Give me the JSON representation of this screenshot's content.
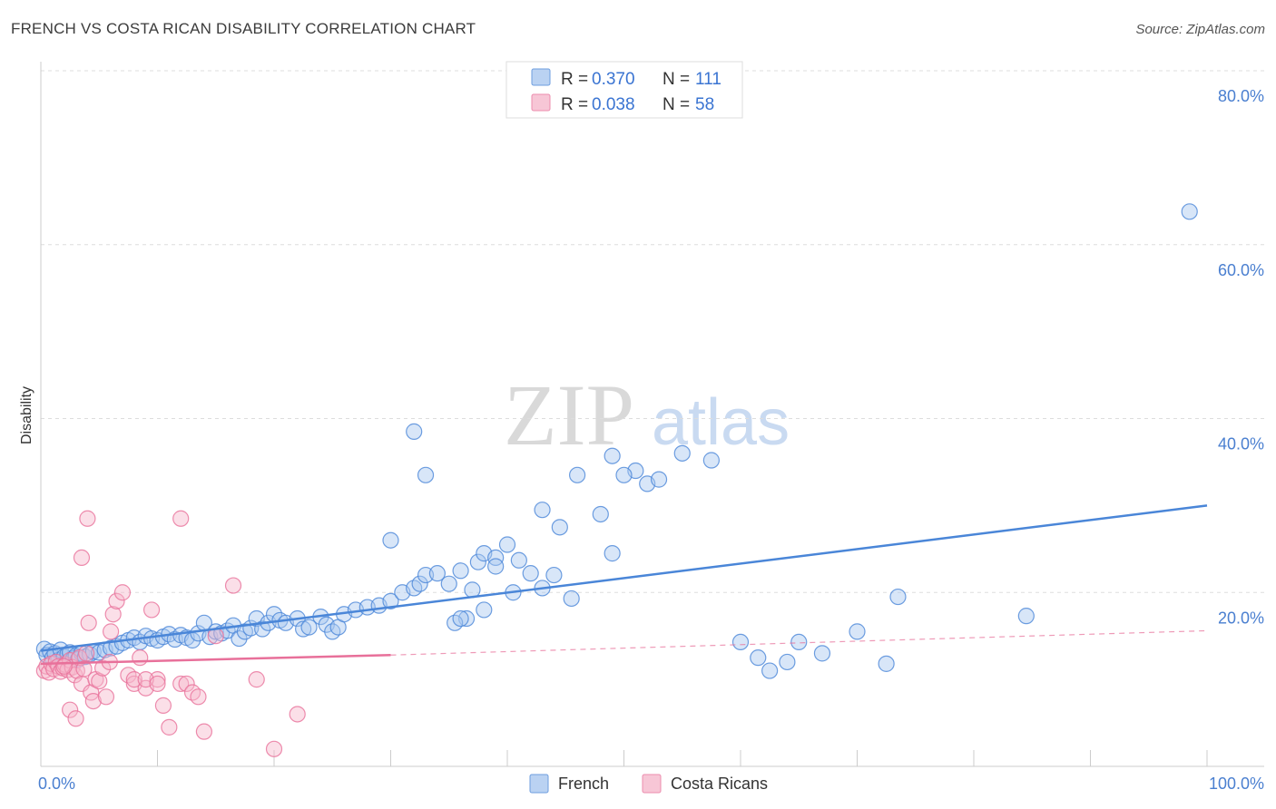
{
  "header": {
    "title": "FRENCH VS COSTA RICAN DISABILITY CORRELATION CHART",
    "source": "Source: ZipAtlas.com"
  },
  "watermark": {
    "zip": "ZIP",
    "atlas": "atlas"
  },
  "legend": {
    "rows": [
      {
        "r_label": "R = ",
        "r_value": "0.370",
        "n_label": "N = ",
        "n_value": "111"
      },
      {
        "r_label": "R = ",
        "r_value": "0.038",
        "n_label": "N = ",
        "n_value": "58"
      }
    ]
  },
  "bottom_legend": [
    "French",
    "Costa Ricans"
  ],
  "colors": {
    "french": "#4a86d8",
    "french_fill": "#a9c8f0",
    "costa": "#e8709a",
    "costa_fill": "#f6b8cc",
    "grid": "#dddddd",
    "tick_text": "#4a7fd0"
  },
  "chart_data": {
    "type": "scatter",
    "title": "FRENCH VS COSTA RICAN DISABILITY CORRELATION CHART",
    "xlabel": "",
    "ylabel": "Disability",
    "xlim": [
      0,
      100
    ],
    "ylim": [
      0,
      80
    ],
    "x_tick_labels": [
      "0.0%",
      "100.0%"
    ],
    "y_ticks": [
      20,
      40,
      60,
      80
    ],
    "y_tick_labels": [
      "20.0%",
      "40.0%",
      "60.0%",
      "80.0%"
    ],
    "grid": true,
    "legend_position": "top-center",
    "series": [
      {
        "name": "French",
        "color": "#4a86d8",
        "trend": {
          "x": [
            0,
            100
          ],
          "y": [
            13.3,
            30.0
          ],
          "style": "solid"
        },
        "points": [
          [
            0.3,
            13.5
          ],
          [
            0.5,
            12.8
          ],
          [
            0.8,
            13.2
          ],
          [
            1.0,
            12.5
          ],
          [
            1.2,
            13.0
          ],
          [
            1.5,
            12.2
          ],
          [
            1.7,
            13.4
          ],
          [
            2.0,
            12.6
          ],
          [
            2.3,
            12.9
          ],
          [
            2.5,
            13.1
          ],
          [
            2.8,
            12.4
          ],
          [
            3.0,
            12.7
          ],
          [
            3.2,
            12.3
          ],
          [
            3.5,
            13.0
          ],
          [
            3.8,
            12.6
          ],
          [
            4.2,
            12.9
          ],
          [
            4.5,
            13.2
          ],
          [
            5.0,
            13.1
          ],
          [
            5.5,
            13.4
          ],
          [
            6.0,
            13.6
          ],
          [
            6.5,
            13.8
          ],
          [
            7.0,
            14.2
          ],
          [
            7.5,
            14.5
          ],
          [
            8.0,
            14.8
          ],
          [
            8.5,
            14.3
          ],
          [
            9.0,
            15.0
          ],
          [
            9.5,
            14.7
          ],
          [
            10.0,
            14.5
          ],
          [
            10.5,
            14.9
          ],
          [
            11.0,
            15.2
          ],
          [
            11.5,
            14.6
          ],
          [
            12.0,
            15.1
          ],
          [
            12.5,
            14.8
          ],
          [
            13.0,
            14.5
          ],
          [
            13.5,
            15.3
          ],
          [
            14.0,
            16.5
          ],
          [
            14.5,
            14.9
          ],
          [
            15.0,
            15.5
          ],
          [
            15.5,
            15.3
          ],
          [
            16.0,
            15.6
          ],
          [
            16.5,
            16.2
          ],
          [
            17.0,
            14.7
          ],
          [
            17.5,
            15.5
          ],
          [
            18.0,
            15.9
          ],
          [
            18.5,
            17.0
          ],
          [
            19.0,
            15.8
          ],
          [
            19.5,
            16.5
          ],
          [
            20.0,
            17.5
          ],
          [
            20.5,
            16.8
          ],
          [
            21.0,
            16.5
          ],
          [
            22.0,
            17.0
          ],
          [
            22.5,
            15.8
          ],
          [
            23.0,
            16.0
          ],
          [
            24.0,
            17.2
          ],
          [
            24.5,
            16.3
          ],
          [
            25.0,
            15.5
          ],
          [
            25.5,
            16.0
          ],
          [
            26.0,
            17.5
          ],
          [
            27.0,
            18.0
          ],
          [
            28.0,
            18.3
          ],
          [
            29.0,
            18.5
          ],
          [
            30.0,
            19.0
          ],
          [
            31.0,
            20.0
          ],
          [
            32.0,
            20.5
          ],
          [
            32.5,
            21.0
          ],
          [
            33.0,
            22.0
          ],
          [
            34.0,
            22.2
          ],
          [
            35.0,
            21.0
          ],
          [
            36.0,
            22.5
          ],
          [
            37.0,
            20.3
          ],
          [
            37.5,
            23.5
          ],
          [
            38.0,
            24.5
          ],
          [
            39.0,
            24.0
          ],
          [
            40.0,
            25.5
          ],
          [
            41.0,
            23.7
          ],
          [
            42.0,
            22.2
          ],
          [
            43.0,
            20.5
          ],
          [
            44.0,
            22.0
          ],
          [
            45.5,
            19.3
          ],
          [
            36.5,
            17.0
          ],
          [
            30.0,
            26.0
          ],
          [
            32.0,
            38.5
          ],
          [
            33.0,
            33.5
          ],
          [
            35.5,
            16.5
          ],
          [
            36.0,
            17.0
          ],
          [
            38.0,
            18.0
          ],
          [
            39.0,
            23.0
          ],
          [
            40.5,
            20.0
          ],
          [
            43.0,
            29.5
          ],
          [
            44.5,
            27.5
          ],
          [
            46.0,
            33.5
          ],
          [
            49.0,
            35.7
          ],
          [
            51.0,
            34.0
          ],
          [
            52.0,
            32.5
          ],
          [
            48.0,
            29.0
          ],
          [
            49.0,
            24.5
          ],
          [
            50.0,
            33.5
          ],
          [
            53.0,
            33.0
          ],
          [
            55.0,
            36.0
          ],
          [
            57.5,
            35.2
          ],
          [
            60.0,
            14.3
          ],
          [
            61.5,
            12.5
          ],
          [
            62.5,
            11.0
          ],
          [
            64.0,
            12.0
          ],
          [
            65.0,
            14.3
          ],
          [
            67.0,
            13.0
          ],
          [
            70.0,
            15.5
          ],
          [
            72.5,
            11.8
          ],
          [
            73.5,
            19.5
          ],
          [
            84.5,
            17.3
          ],
          [
            98.5,
            63.8
          ]
        ]
      },
      {
        "name": "Costa Ricans",
        "color": "#e8709a",
        "trend": {
          "x": [
            0,
            30
          ],
          "y": [
            11.8,
            12.8
          ],
          "style": "solid",
          "dashed_extension": {
            "x": [
              30,
              100
            ],
            "y": [
              12.8,
              15.6
            ]
          }
        },
        "points": [
          [
            0.3,
            11.0
          ],
          [
            0.5,
            11.5
          ],
          [
            0.7,
            10.8
          ],
          [
            0.9,
            11.8
          ],
          [
            1.1,
            11.2
          ],
          [
            1.3,
            12.0
          ],
          [
            1.5,
            11.5
          ],
          [
            1.7,
            10.9
          ],
          [
            1.9,
            11.3
          ],
          [
            2.1,
            11.7
          ],
          [
            2.3,
            11.1
          ],
          [
            2.5,
            12.2
          ],
          [
            2.7,
            11.4
          ],
          [
            2.9,
            10.5
          ],
          [
            3.1,
            11.0
          ],
          [
            3.3,
            12.5
          ],
          [
            3.5,
            9.5
          ],
          [
            3.7,
            11.2
          ],
          [
            3.9,
            13.0
          ],
          [
            4.1,
            16.5
          ],
          [
            4.3,
            8.5
          ],
          [
            4.5,
            7.5
          ],
          [
            4.7,
            10.0
          ],
          [
            5.0,
            9.8
          ],
          [
            5.3,
            11.3
          ],
          [
            5.6,
            8.0
          ],
          [
            5.9,
            12.0
          ],
          [
            6.2,
            17.5
          ],
          [
            6.5,
            19.0
          ],
          [
            7.0,
            20.0
          ],
          [
            7.5,
            10.5
          ],
          [
            8.0,
            9.5
          ],
          [
            8.5,
            12.5
          ],
          [
            9.0,
            9.0
          ],
          [
            9.5,
            18.0
          ],
          [
            10.0,
            10.0
          ],
          [
            10.5,
            7.0
          ],
          [
            11.0,
            4.5
          ],
          [
            12.0,
            9.5
          ],
          [
            12.5,
            9.5
          ],
          [
            13.0,
            8.5
          ],
          [
            3.5,
            24.0
          ],
          [
            4.0,
            28.5
          ],
          [
            12.0,
            28.5
          ],
          [
            13.5,
            8.0
          ],
          [
            14.0,
            4.0
          ],
          [
            15.0,
            15.0
          ],
          [
            16.5,
            20.8
          ],
          [
            18.5,
            10.0
          ],
          [
            20.0,
            2.0
          ],
          [
            22.0,
            6.0
          ],
          [
            2.0,
            11.5
          ],
          [
            2.5,
            6.5
          ],
          [
            3.0,
            5.5
          ],
          [
            6.0,
            15.5
          ],
          [
            8.0,
            10.0
          ],
          [
            9.0,
            10.0
          ],
          [
            10.0,
            9.5
          ]
        ]
      }
    ]
  }
}
